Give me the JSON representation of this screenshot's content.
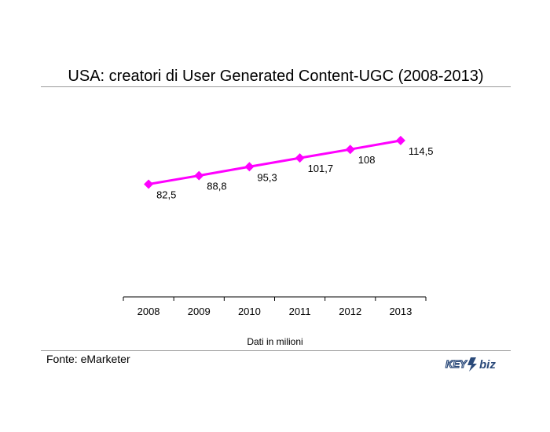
{
  "chart_data": {
    "type": "line",
    "title": "USA: creatori di User Generated Content-UGC (2008-2013)",
    "categories": [
      "2008",
      "2009",
      "2010",
      "2011",
      "2012",
      "2013"
    ],
    "series": [
      {
        "values": [
          82.5,
          88.8,
          95.3,
          101.7,
          108,
          114.5
        ],
        "value_labels": [
          "82,5",
          "88,8",
          "95,3",
          "101,7",
          "108",
          "114,5"
        ]
      }
    ],
    "ylim": [
      0,
      140
    ],
    "grid": false,
    "legend": "none",
    "line_color": "#ff00ff",
    "unit_note": "Dati in milioni"
  },
  "footer": {
    "source": "Fonte: eMarketer",
    "logo_text": "KEY4biz"
  }
}
